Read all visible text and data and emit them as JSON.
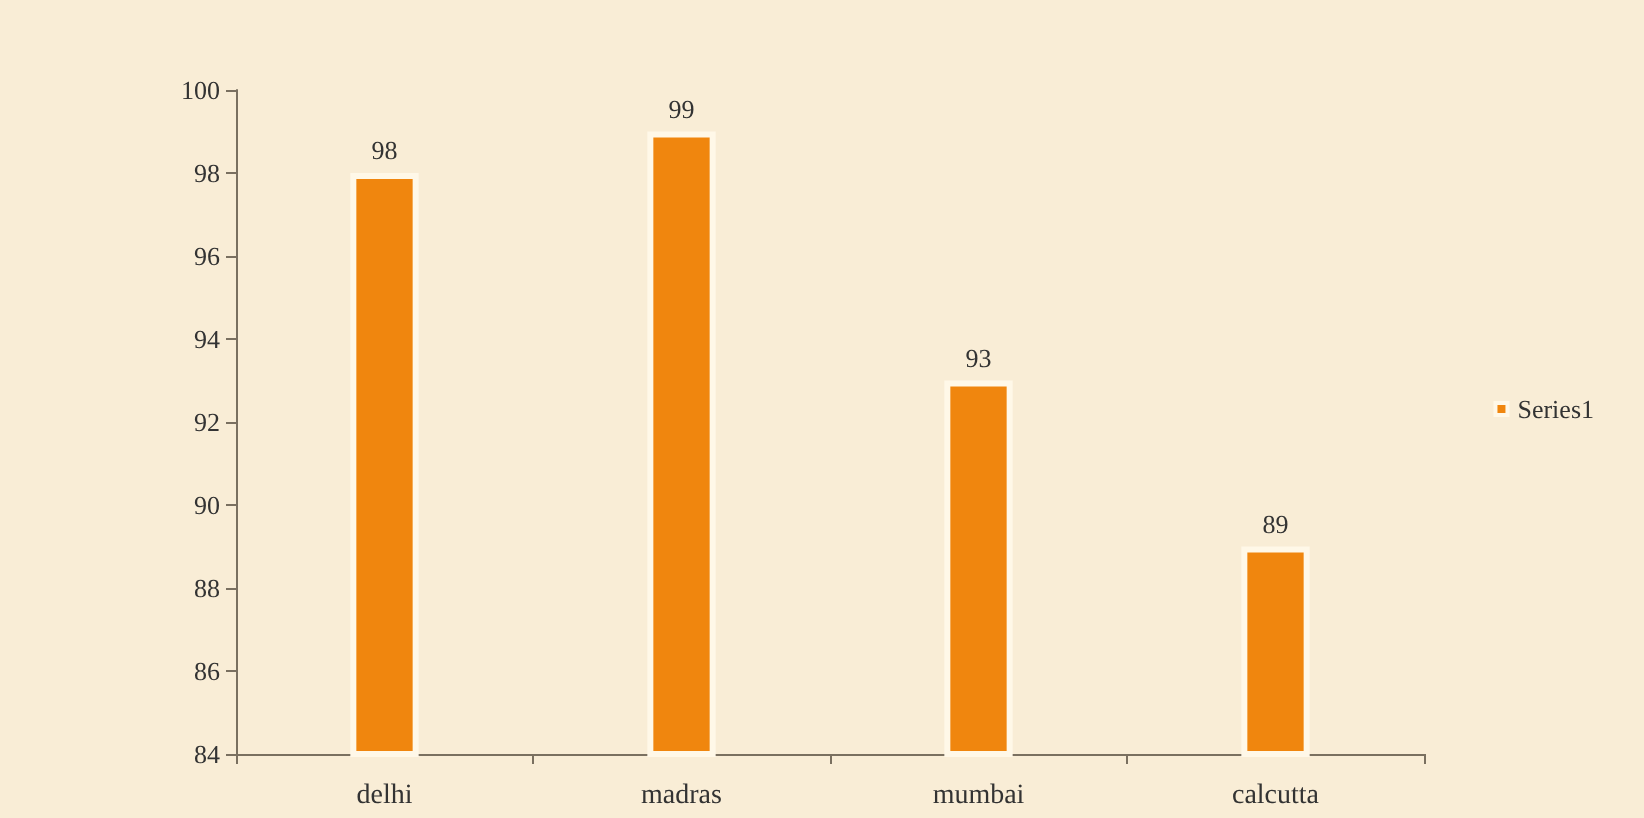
{
  "chart_data": {
    "type": "bar",
    "categories": [
      "delhi",
      "madras",
      "mumbai",
      "calcutta"
    ],
    "series": [
      {
        "name": "Series1",
        "color": "#f0860e",
        "values": [
          98,
          99,
          93,
          89
        ]
      }
    ],
    "ylim": [
      84,
      100
    ],
    "yticks": [
      84,
      86,
      88,
      90,
      92,
      94,
      96,
      98,
      100
    ],
    "data_labels": true,
    "legend": "right",
    "grid": false
  }
}
